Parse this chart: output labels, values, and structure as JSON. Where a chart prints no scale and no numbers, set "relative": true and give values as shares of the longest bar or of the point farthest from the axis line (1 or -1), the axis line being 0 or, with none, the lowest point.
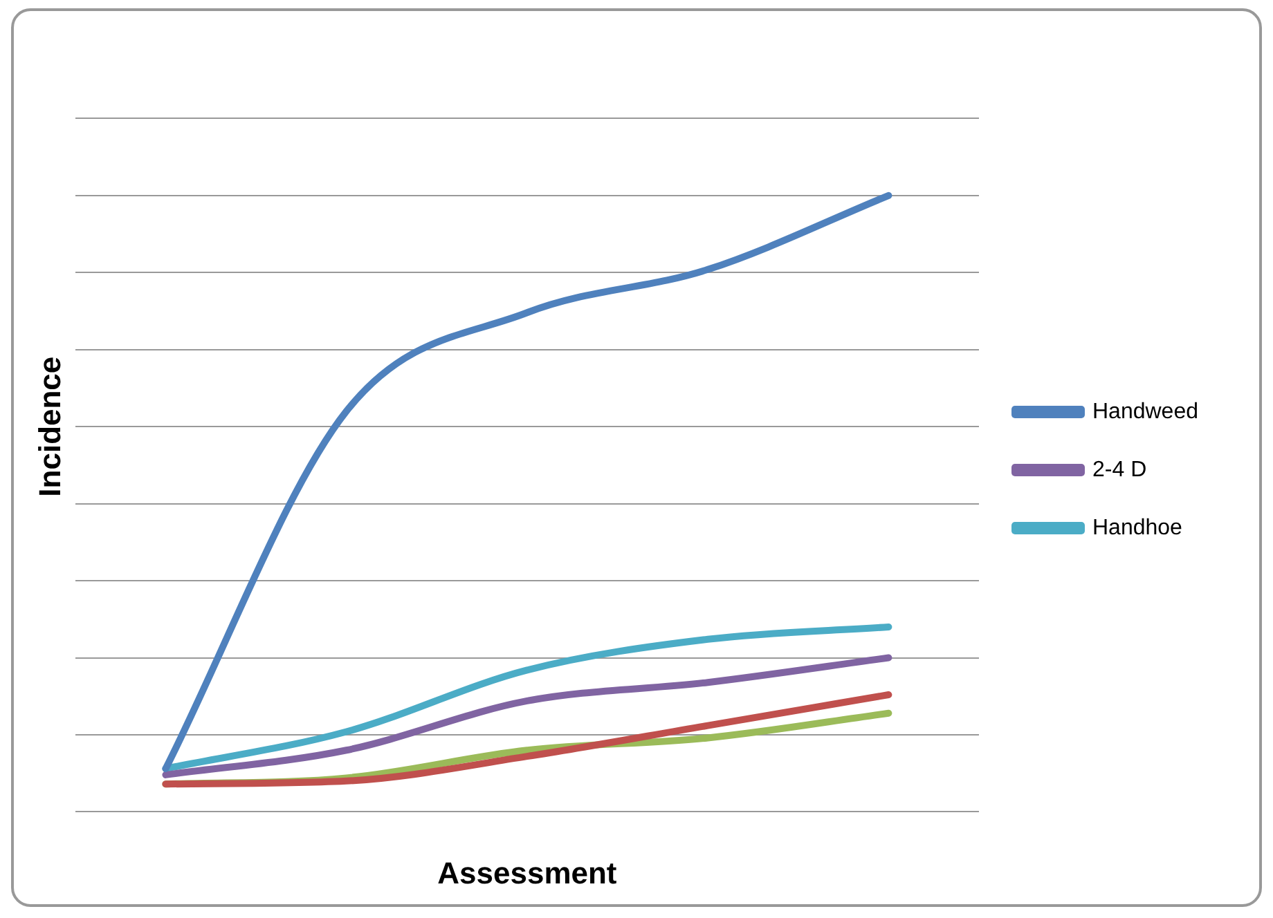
{
  "chart_data": {
    "type": "line",
    "xlabel": "Assessment",
    "ylabel": "Incidence",
    "relative": true,
    "grid": "y",
    "legend": "right",
    "marker": "none",
    "line_style": "solid",
    "categories": [
      null,
      null,
      null,
      null,
      null
    ],
    "series": [
      {
        "name": "Handweed",
        "color": "#4f81bd",
        "values": [
          0.07,
          0.65,
          0.81,
          0.88,
          1
        ]
      },
      {
        "color": "#c0504d",
        "values": [
          0.045,
          0.05,
          0.09,
          0.14,
          0.19
        ]
      },
      {
        "color": "#9bbb59",
        "values": [
          0.045,
          0.055,
          0.1,
          0.12,
          0.16
        ]
      },
      {
        "name": "2-4 D",
        "color": "#8064a2",
        "values": [
          0.06,
          0.1,
          0.18,
          0.21,
          0.25
        ]
      },
      {
        "name": "Handhoe",
        "color": "#4bacc6",
        "values": [
          0.07,
          0.13,
          0.23,
          0.28,
          0.3
        ]
      }
    ]
  }
}
